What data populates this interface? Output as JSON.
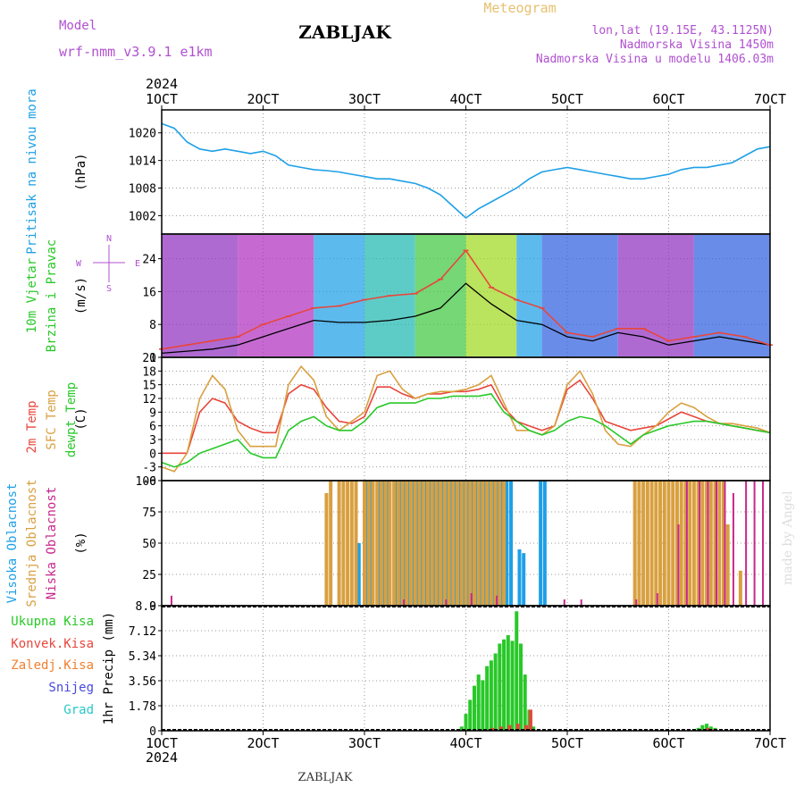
{
  "header": {
    "model_label": "Model",
    "model_name": "wrf-nmm_v3.9.1 e1km",
    "station": "ZABLJAK",
    "product": "Meteogram",
    "lonlat": "lon,lat (19.15E, 43.1125N)",
    "altitude": "Nadmorska Visina 1450m",
    "model_altitude": "Nadmorska Visina u modelu 1406.03m",
    "footer_station": "ZABLJAK",
    "watermark": "made by Angel"
  },
  "colors": {
    "pressure": "#1ea0e6",
    "temp2m": "#e8463c",
    "sfc_temp": "#d9a040",
    "dewpt": "#28c828",
    "high_cloud": "#1ea0e6",
    "mid_cloud": "#d9a040",
    "low_cloud": "#c8288c",
    "total_precip": "#28c828",
    "conv_precip": "#e8463c",
    "freezing_precip": "#f08030",
    "snow": "#4848e0",
    "hail": "#28c8c8",
    "wind_speed": "#000000",
    "wind_gust": "#e8463c",
    "grid": "#999999"
  },
  "chart_data": {
    "type": "line",
    "x_axis": {
      "tick_labels": [
        "1OCT",
        "2OCT",
        "3OCT",
        "4OCT",
        "5OCT",
        "6OCT",
        "7OCT"
      ],
      "year_label": "2024",
      "range_hours": [
        0,
        144
      ]
    },
    "panels": [
      {
        "id": "pressure",
        "type": "line",
        "ylabel": "(hPa)",
        "side_labels": [
          "Pritisak na nivou mora"
        ],
        "yticks": [
          1002,
          1008,
          1014,
          1020
        ],
        "ylim": [
          998,
          1025
        ],
        "series": [
          {
            "color_key": "pressure",
            "hours": [
              0,
              3,
              6,
              9,
              12,
              15,
              18,
              21,
              24,
              27,
              30,
              33,
              36,
              39,
              42,
              45,
              48,
              51,
              54,
              57,
              60,
              63,
              66,
              69,
              72,
              75,
              78,
              81,
              84,
              87,
              90,
              93,
              96,
              99,
              102,
              105,
              108,
              111,
              114,
              117,
              120,
              123,
              126,
              129,
              132,
              135,
              138,
              141,
              144
            ],
            "values": [
              1022,
              1021,
              1018,
              1016.5,
              1016,
              1016.5,
              1016,
              1015.5,
              1016,
              1015,
              1013,
              1012.5,
              1012,
              1011.8,
              1011.5,
              1011,
              1010.5,
              1010,
              1010,
              1009.5,
              1009,
              1008,
              1006.5,
              1004,
              1001.5,
              1003.5,
              1005,
              1006.5,
              1008,
              1010,
              1011.5,
              1012,
              1012.5,
              1012,
              1011.5,
              1011,
              1010.5,
              1010,
              1010,
              1010.5,
              1011,
              1012,
              1012.5,
              1012.5,
              1013,
              1013.5,
              1015,
              1016.5,
              1017
            ]
          }
        ]
      },
      {
        "id": "wind",
        "type": "line",
        "ylabel": "(m/s)",
        "side_labels": [
          "10m Vjetar",
          "Brzina i Pravac"
        ],
        "compass": [
          "N",
          "W",
          "E",
          "S"
        ],
        "yticks": [
          0,
          8,
          16,
          24
        ],
        "ylim": [
          0,
          30
        ],
        "series": [
          {
            "color_key": "wind_speed",
            "name": "speed",
            "hours": [
              0,
              6,
              12,
              18,
              24,
              30,
              36,
              42,
              48,
              54,
              60,
              66,
              72,
              78,
              84,
              90,
              96,
              102,
              108,
              114,
              120,
              126,
              132,
              138,
              144
            ],
            "values": [
              1,
              1.5,
              2,
              3,
              5,
              7,
              9,
              8.5,
              8.5,
              9,
              10,
              12,
              18,
              13,
              9,
              8,
              5,
              4,
              6,
              5,
              3,
              4,
              5,
              4,
              3
            ]
          },
          {
            "color_key": "wind_gust",
            "name": "gust",
            "hours": [
              0,
              6,
              12,
              18,
              24,
              30,
              36,
              42,
              48,
              54,
              60,
              66,
              72,
              78,
              84,
              90,
              96,
              102,
              108,
              114,
              120,
              126,
              132,
              138,
              144
            ],
            "values": [
              2,
              3,
              4,
              5,
              8,
              10,
              12,
              12.5,
              14,
              15,
              15.5,
              19,
              26,
              17,
              14,
              12,
              6,
              5,
              7,
              7,
              4,
              5,
              6,
              5,
              3
            ]
          }
        ]
      },
      {
        "id": "temperature",
        "type": "line",
        "ylabel": "(C)",
        "side_labels": [
          "2m Temp",
          "SFC Temp",
          "dewpt Temp"
        ],
        "yticks": [
          -6,
          -3,
          0,
          3,
          6,
          9,
          12,
          15,
          18,
          21
        ],
        "ylim": [
          -6,
          21
        ],
        "series": [
          {
            "color_key": "temp2m",
            "hours": [
              0,
              3,
              6,
              9,
              12,
              15,
              18,
              21,
              24,
              27,
              30,
              33,
              36,
              39,
              42,
              45,
              48,
              51,
              54,
              57,
              60,
              63,
              66,
              69,
              72,
              75,
              78,
              81,
              84,
              87,
              90,
              93,
              96,
              99,
              102,
              105,
              108,
              111,
              114,
              117,
              120,
              123,
              126,
              129,
              132,
              135,
              138,
              141,
              144
            ],
            "values": [
              0,
              0,
              0,
              9,
              12,
              11,
              7,
              5.5,
              4.5,
              4.5,
              13,
              15,
              14,
              10,
              7,
              6.5,
              8,
              14.5,
              14.5,
              13,
              12,
              13,
              13,
              13.5,
              13.5,
              14,
              15,
              10,
              7,
              6,
              5,
              6,
              14,
              16,
              12,
              7,
              6,
              5,
              5.5,
              6,
              7.5,
              9,
              8,
              7,
              6.5,
              6,
              5.5,
              5,
              4.5
            ]
          },
          {
            "color_key": "sfc_temp",
            "hours": [
              0,
              3,
              6,
              9,
              12,
              15,
              18,
              21,
              24,
              27,
              30,
              33,
              36,
              39,
              42,
              45,
              48,
              51,
              54,
              57,
              60,
              63,
              66,
              69,
              72,
              75,
              78,
              81,
              84,
              87,
              90,
              93,
              96,
              99,
              102,
              105,
              108,
              111,
              114,
              117,
              120,
              123,
              126,
              129,
              132,
              135,
              138,
              141,
              144
            ],
            "values": [
              -3,
              -4,
              0,
              12,
              17,
              14,
              5,
              1.5,
              1.5,
              1.5,
              15,
              19,
              16,
              8,
              5,
              7,
              9,
              17,
              18,
              14,
              12,
              13,
              13.5,
              13.5,
              14,
              15,
              17,
              11,
              5,
              5,
              4,
              6,
              15,
              18,
              13,
              5,
              2,
              1.5,
              4,
              6,
              9,
              11,
              10,
              8,
              6.5,
              6.5,
              6,
              5.5,
              4.5
            ]
          },
          {
            "color_key": "dewpt",
            "hours": [
              0,
              3,
              6,
              9,
              12,
              15,
              18,
              21,
              24,
              27,
              30,
              33,
              36,
              39,
              42,
              45,
              48,
              51,
              54,
              57,
              60,
              63,
              66,
              69,
              72,
              75,
              78,
              81,
              84,
              87,
              90,
              93,
              96,
              99,
              102,
              105,
              108,
              111,
              114,
              117,
              120,
              123,
              126,
              129,
              132,
              135,
              138,
              141,
              144
            ],
            "values": [
              -2,
              -3,
              -2,
              0,
              1,
              2,
              3,
              0,
              -1,
              -1,
              5,
              7,
              8,
              6,
              5,
              5,
              7,
              10,
              11,
              11,
              11,
              12,
              12,
              12.5,
              12.5,
              12.5,
              13,
              9,
              7,
              5,
              4,
              5,
              7,
              8,
              7.5,
              6,
              4,
              2,
              4,
              5,
              6,
              6.5,
              7,
              7,
              6.5,
              6,
              5.5,
              5,
              4.5
            ]
          }
        ]
      },
      {
        "id": "clouds",
        "type": "bar",
        "ylabel": "(%)",
        "side_labels": [
          "Visoka Oblacnost",
          "Srednja Oblacnost",
          "Niska Oblacnost"
        ],
        "yticks": [
          0,
          25,
          50,
          75,
          100
        ],
        "ylim": [
          0,
          100
        ],
        "series": [
          {
            "color_key": "high_cloud",
            "name": "high",
            "hours": [
              47,
              49,
              50,
              52,
              53,
              54,
              56,
              57,
              58,
              59,
              60,
              61,
              62,
              63,
              64,
              65,
              66,
              67,
              68,
              69,
              70,
              71,
              72,
              73,
              74,
              75,
              76,
              77,
              78,
              79,
              80,
              81,
              82,
              83,
              85,
              86,
              90,
              91
            ],
            "values": [
              50,
              100,
              100,
              100,
              100,
              100,
              100,
              100,
              100,
              100,
              100,
              100,
              100,
              100,
              100,
              100,
              100,
              100,
              100,
              100,
              100,
              100,
              100,
              100,
              100,
              100,
              100,
              100,
              100,
              100,
              100,
              100,
              100,
              100,
              45,
              42,
              100,
              100
            ]
          },
          {
            "color_key": "mid_cloud",
            "name": "mid",
            "hours": [
              39,
              40,
              42,
              43,
              44,
              45,
              46,
              48,
              49,
              50,
              51,
              52,
              53,
              54,
              55,
              56,
              57,
              58,
              59,
              60,
              61,
              62,
              63,
              64,
              65,
              66,
              67,
              68,
              69,
              70,
              71,
              72,
              73,
              74,
              75,
              76,
              77,
              78,
              79,
              80,
              81,
              112,
              113,
              114,
              115,
              116,
              117,
              118,
              119,
              120,
              121,
              122,
              123,
              124,
              125,
              126,
              127,
              128,
              129,
              130,
              131,
              132,
              133,
              134,
              137
            ],
            "values": [
              90,
              100,
              100,
              100,
              100,
              100,
              100,
              100,
              100,
              100,
              100,
              100,
              100,
              100,
              100,
              100,
              100,
              100,
              100,
              100,
              100,
              100,
              100,
              100,
              100,
              100,
              100,
              100,
              100,
              100,
              100,
              100,
              100,
              100,
              100,
              100,
              100,
              100,
              100,
              100,
              100,
              100,
              100,
              100,
              100,
              100,
              100,
              100,
              100,
              100,
              100,
              100,
              100,
              100,
              100,
              100,
              100,
              100,
              100,
              100,
              100,
              100,
              100,
              65,
              28
            ]
          },
          {
            "color_key": "low_cloud",
            "name": "low",
            "hours": [
              2,
              57,
              67,
              73,
              79,
              95,
              99,
              112,
              117,
              122,
              124,
              127,
              129,
              131,
              133,
              135,
              138,
              140,
              142
            ],
            "values": [
              8,
              5,
              5,
              10,
              8,
              5,
              5,
              5,
              10,
              65,
              100,
              100,
              100,
              100,
              100,
              90,
              100,
              100,
              100
            ]
          }
        ]
      },
      {
        "id": "precip",
        "type": "bar",
        "ylabel": "1hr Precip (mm)",
        "side_labels": [
          "Ukupna Kisa",
          "Konvek.Kisa",
          "Zaledj.Kisa",
          "Snijeg",
          "Grad"
        ],
        "yticks": [
          0,
          1.78,
          3.56,
          5.34,
          7.12,
          8.9
        ],
        "ylim": [
          0,
          8.9
        ],
        "series": [
          {
            "color_key": "total_precip",
            "name": "total",
            "hours": [
              71,
              72,
              73,
              74,
              75,
              76,
              77,
              78,
              79,
              80,
              81,
              82,
              83,
              84,
              85,
              86,
              87,
              88,
              126,
              127,
              128,
              129,
              130,
              131
            ],
            "values": [
              0.3,
              1.2,
              2.2,
              3.2,
              4.0,
              3.6,
              4.6,
              5.0,
              5.5,
              6.2,
              6.5,
              6.8,
              6.4,
              8.5,
              6.2,
              4.0,
              1.5,
              0.3,
              0.1,
              0.2,
              0.4,
              0.5,
              0.3,
              0.2
            ]
          },
          {
            "color_key": "conv_precip",
            "name": "convective",
            "hours": [
              78,
              80,
              82,
              84,
              86,
              87,
              129,
              130
            ],
            "values": [
              0.2,
              0.3,
              0.4,
              0.5,
              0.4,
              1.5,
              0.2,
              0.1
            ]
          }
        ]
      }
    ]
  }
}
